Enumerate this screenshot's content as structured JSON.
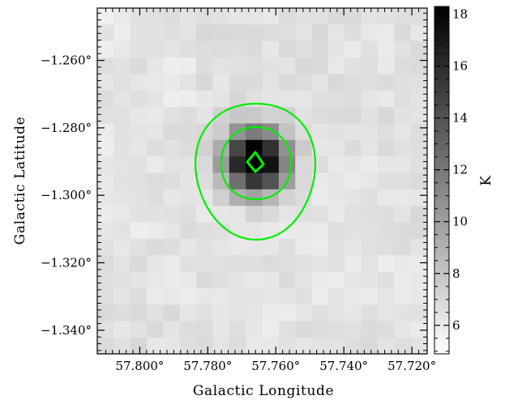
{
  "chart_data": {
    "type": "heatmap",
    "title": "",
    "xlabel": "Galactic Longitude",
    "ylabel": "Galactic Latitude",
    "x_axis": {
      "reversed": true,
      "range": [
        57.8125,
        57.7155
      ],
      "ticks": [
        57.8,
        57.78,
        57.76,
        57.74,
        57.72
      ],
      "tick_labels": [
        "57.800°",
        "57.780°",
        "57.760°",
        "57.740°",
        "57.720°"
      ]
    },
    "y_axis": {
      "range": [
        -1.347,
        -1.2445
      ],
      "ticks": [
        -1.26,
        -1.28,
        -1.3,
        -1.32,
        -1.34
      ],
      "tick_labels": [
        "−1.260°",
        "−1.280°",
        "−1.300°",
        "−1.320°",
        "−1.340°"
      ]
    },
    "colorbar": {
      "label": "K",
      "range": [
        4.9,
        18.3
      ],
      "ticks": [
        6,
        8,
        10,
        12,
        14,
        16,
        18
      ],
      "tick_labels": [
        "6",
        "8",
        "10",
        "12",
        "14",
        "16",
        "18"
      ],
      "colormap": "gray_reversed"
    },
    "peak": {
      "l": 57.7658,
      "b": -1.29,
      "value": 18.3
    },
    "contours": {
      "color": "#00ee00",
      "levels_K": [
        10,
        14,
        18
      ]
    },
    "grid": false,
    "legend": "none"
  }
}
